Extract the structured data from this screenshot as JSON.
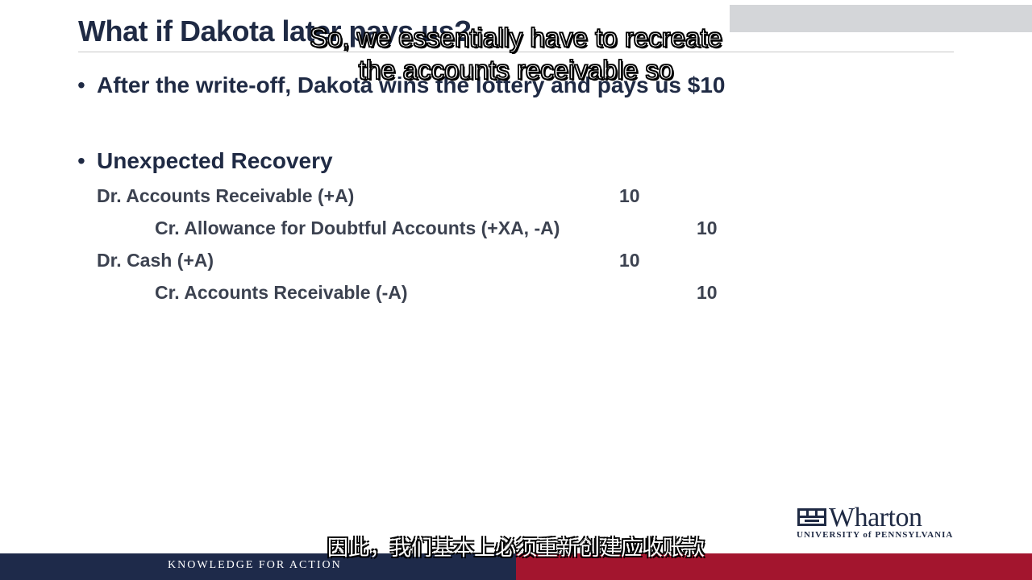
{
  "slide": {
    "title": "What if Dakota later pays us?",
    "bullets": [
      "After the write-off, Dakota wins the lottery and pays us $10",
      "Unexpected Recovery"
    ],
    "journal_entries": [
      {
        "label": "Dr. Accounts Receivable (+A)",
        "debit": "10",
        "credit": ""
      },
      {
        "label": "Cr. Allowance for Doubtful Accounts (+XA, -A)",
        "debit": "",
        "credit": "10"
      },
      {
        "label": "Dr. Cash (+A)",
        "debit": "10",
        "credit": ""
      },
      {
        "label": "Cr. Accounts Receivable (-A)",
        "debit": "",
        "credit": "10"
      }
    ]
  },
  "subtitles": {
    "english_line1": "So, we essentially have to recreate",
    "english_line2": "the accounts receivable so",
    "chinese": "因此，我们基本上必须重新创建应收账款"
  },
  "branding": {
    "logo_word": "Wharton",
    "logo_sub": "UNIVERSITY of PENNSYLVANIA",
    "footer_tagline": "KNOWLEDGE FOR ACTION",
    "navy": "#1e2a4a",
    "crimson": "#a3152e"
  }
}
